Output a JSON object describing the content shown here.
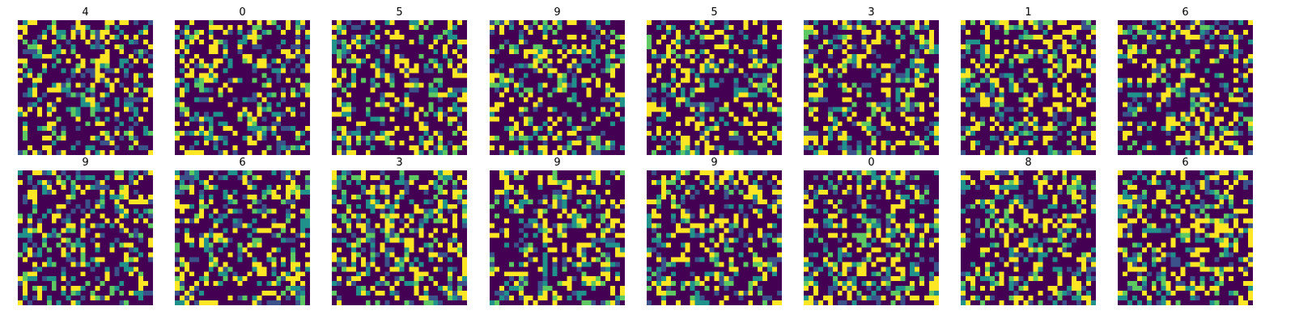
{
  "figure": {
    "rows": 2,
    "cols": 8,
    "colormap": "viridis",
    "colormap_stops": [
      "#440154",
      "#3b528b",
      "#21918c",
      "#5ec962",
      "#fde725"
    ]
  },
  "chart_data": {
    "type": "heatmap",
    "description_kind": "image grid",
    "image_size": [
      28,
      28
    ],
    "value_levels": [
      0,
      0.25,
      0.5,
      0.75,
      1.0
    ],
    "axes_visible": false,
    "panels": [
      {
        "title": "4"
      },
      {
        "title": "0"
      },
      {
        "title": "5"
      },
      {
        "title": "9"
      },
      {
        "title": "5"
      },
      {
        "title": "3"
      },
      {
        "title": "1"
      },
      {
        "title": "6"
      },
      {
        "title": "9"
      },
      {
        "title": "6"
      },
      {
        "title": "3"
      },
      {
        "title": "9"
      },
      {
        "title": "9"
      },
      {
        "title": "0"
      },
      {
        "title": "8"
      },
      {
        "title": "6"
      }
    ]
  }
}
